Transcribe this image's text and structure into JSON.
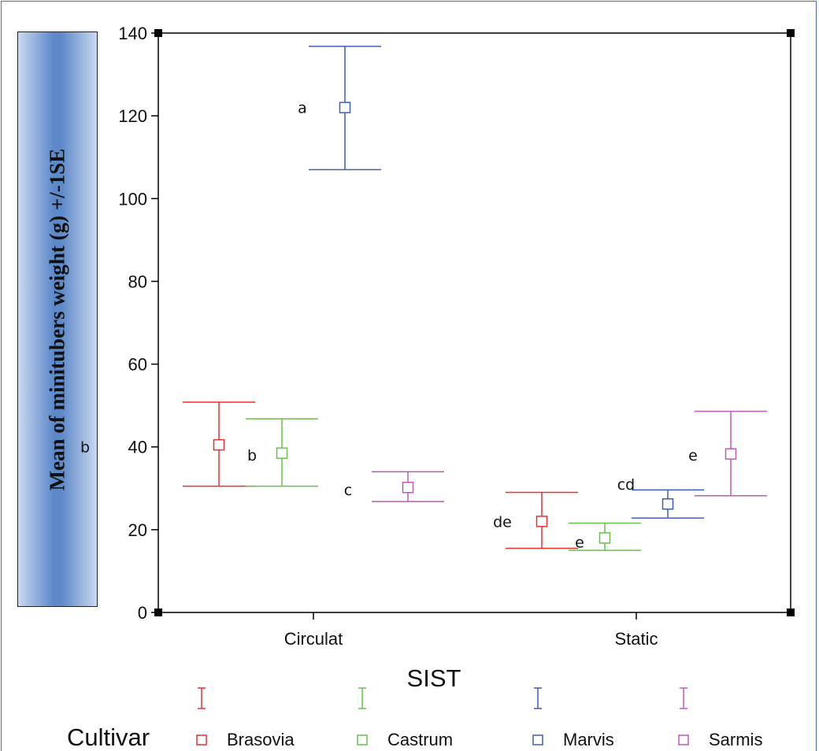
{
  "chart_data": {
    "type": "scatter",
    "title": "",
    "xlabel": "SIST",
    "ylabel": "Mean of minitubers weight (g) +/-1SE",
    "categories": [
      "Circulat",
      "Static"
    ],
    "ylim": [
      0,
      140
    ],
    "yticks": [
      "0",
      "20",
      "40",
      "60",
      "80",
      "100",
      "120",
      "140"
    ],
    "grid": false,
    "legend": {
      "title": "Cultivar",
      "placement": "bottom"
    },
    "series": [
      {
        "name": "Brasovia",
        "color": "#e83030",
        "values": [
          40.5,
          22
        ],
        "lower": [
          30.5,
          15.5
        ],
        "upper": [
          50.8,
          29
        ],
        "letters": [
          "b",
          "de"
        ]
      },
      {
        "name": "Castrum",
        "color": "#66c24a",
        "values": [
          38.5,
          18
        ],
        "lower": [
          30.5,
          15
        ],
        "upper": [
          46.8,
          21.6
        ],
        "letters": [
          "b",
          "e"
        ]
      },
      {
        "name": "Marvis",
        "color": "#3f5fb5",
        "values": [
          122,
          26.2
        ],
        "lower": [
          107,
          22.8
        ],
        "upper": [
          136.8,
          29.6
        ],
        "letters": [
          "a",
          "cd"
        ]
      },
      {
        "name": "Sarmis",
        "color": "#c15ab8",
        "values": [
          30.2,
          38.3
        ],
        "lower": [
          26.8,
          28.2
        ],
        "upper": [
          34,
          48.6
        ],
        "letters": [
          "c",
          "e"
        ]
      }
    ]
  }
}
